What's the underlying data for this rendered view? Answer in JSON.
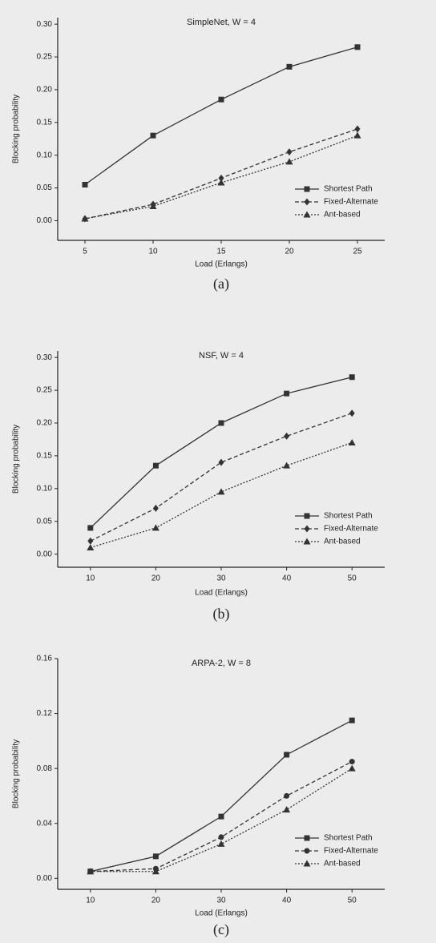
{
  "chart_data": [
    {
      "type": "line",
      "title": "SimpleNet, W = 4",
      "x_label": "Load (Erlangs)",
      "y_label": "Blocking probability",
      "caption": "(a)",
      "x": [
        5,
        10,
        15,
        20,
        25
      ],
      "xlim": [
        3,
        27
      ],
      "xticks": [
        5,
        10,
        15,
        20,
        25
      ],
      "ylim": [
        -0.03,
        0.31
      ],
      "yticks": [
        {
          "value": 0,
          "label": "0.00"
        },
        {
          "value": 0.05,
          "label": "0.05"
        },
        {
          "value": 0.1,
          "label": "0.10"
        },
        {
          "value": 0.15,
          "label": "0.15"
        },
        {
          "value": 0.2,
          "label": "0.20"
        },
        {
          "value": 0.25,
          "label": "0.25"
        },
        {
          "value": 0.3,
          "label": "0.30"
        }
      ],
      "legend": "lower right",
      "series": [
        {
          "name": "Shortest Path",
          "color": "#333333",
          "marker": "square",
          "dash": "solid",
          "values": [
            0.055,
            0.13,
            0.185,
            0.235,
            0.265
          ]
        },
        {
          "name": "Fixed-Alternate",
          "color": "#333333",
          "marker": "diamond",
          "dash": "dashed",
          "values": [
            0.003,
            0.025,
            0.065,
            0.105,
            0.14
          ]
        },
        {
          "name": "Ant-based",
          "color": "#333333",
          "marker": "triangle",
          "dash": "dotted",
          "values": [
            0.003,
            0.022,
            0.058,
            0.09,
            0.13
          ]
        }
      ]
    },
    {
      "type": "line",
      "title": "NSF, W = 4",
      "x_label": "Load (Erlangs)",
      "y_label": "Blocking probability",
      "caption": "(b)",
      "x": [
        10,
        20,
        30,
        40,
        50
      ],
      "xlim": [
        5,
        55
      ],
      "xticks": [
        10,
        20,
        30,
        40,
        50
      ],
      "ylim": [
        -0.02,
        0.31
      ],
      "yticks": [
        {
          "value": 0,
          "label": "0.00"
        },
        {
          "value": 0.05,
          "label": "0.05"
        },
        {
          "value": 0.1,
          "label": "0.10"
        },
        {
          "value": 0.15,
          "label": "0.15"
        },
        {
          "value": 0.2,
          "label": "0.20"
        },
        {
          "value": 0.25,
          "label": "0.25"
        },
        {
          "value": 0.3,
          "label": "0.30"
        }
      ],
      "legend": "lower right",
      "series": [
        {
          "name": "Shortest Path",
          "color": "#333333",
          "marker": "square",
          "dash": "solid",
          "values": [
            0.04,
            0.135,
            0.2,
            0.245,
            0.27
          ]
        },
        {
          "name": "Fixed-Alternate",
          "color": "#333333",
          "marker": "diamond",
          "dash": "dashed",
          "values": [
            0.02,
            0.07,
            0.14,
            0.18,
            0.215
          ]
        },
        {
          "name": "Ant-based",
          "color": "#333333",
          "marker": "triangle",
          "dash": "dotted",
          "values": [
            0.01,
            0.04,
            0.095,
            0.135,
            0.17
          ]
        }
      ]
    },
    {
      "type": "line",
      "title": "ARPA-2, W = 8",
      "x_label": "Load (Erlangs)",
      "y_label": "Blocking probability",
      "caption": "(c)",
      "x": [
        10,
        20,
        30,
        40,
        50
      ],
      "xlim": [
        5,
        55
      ],
      "xticks": [
        10,
        20,
        30,
        40,
        50
      ],
      "ylim": [
        -0.008,
        0.16
      ],
      "yticks": [
        {
          "value": 0,
          "label": "0.00"
        },
        {
          "value": 0.04,
          "label": "0.04"
        },
        {
          "value": 0.08,
          "label": "0.08"
        },
        {
          "value": 0.12,
          "label": "0.12"
        },
        {
          "value": 0.16,
          "label": "0.16"
        }
      ],
      "legend": "lower right",
      "series": [
        {
          "name": "Shortest Path",
          "color": "#333333",
          "marker": "square",
          "dash": "solid",
          "values": [
            0.005,
            0.016,
            0.045,
            0.09,
            0.115
          ]
        },
        {
          "name": "Fixed-Alternate",
          "color": "#333333",
          "marker": "circle",
          "dash": "dashed",
          "values": [
            0.005,
            0.007,
            0.03,
            0.06,
            0.085
          ]
        },
        {
          "name": "Ant-based",
          "color": "#333333",
          "marker": "triangle",
          "dash": "dotted",
          "values": [
            0.005,
            0.005,
            0.025,
            0.05,
            0.08
          ]
        }
      ]
    }
  ]
}
